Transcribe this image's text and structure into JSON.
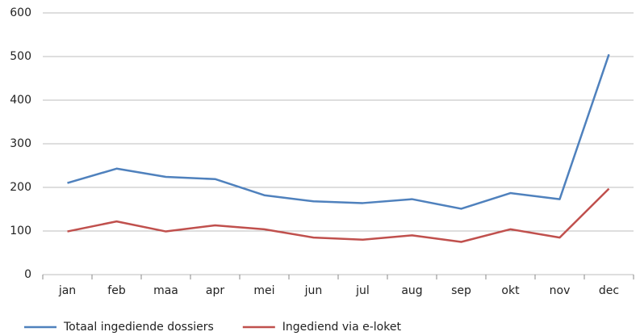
{
  "chart_data": {
    "type": "line",
    "categories": [
      "jan",
      "feb",
      "maa",
      "apr",
      "mei",
      "jun",
      "jul",
      "aug",
      "sep",
      "okt",
      "nov",
      "dec"
    ],
    "series": [
      {
        "name": "Totaal ingediende dossiers",
        "color": "#4f81bd",
        "values": [
          210,
          243,
          224,
          219,
          182,
          168,
          164,
          173,
          151,
          187,
          173,
          505
        ]
      },
      {
        "name": "Ingediend via e-loket",
        "color": "#c0504d",
        "values": [
          99,
          122,
          99,
          113,
          104,
          85,
          80,
          90,
          75,
          104,
          85,
          197
        ]
      }
    ],
    "ylim": [
      0,
      600
    ],
    "yticks": [
      0,
      100,
      200,
      300,
      400,
      500,
      600
    ],
    "grid": true,
    "legend": "bottom"
  }
}
